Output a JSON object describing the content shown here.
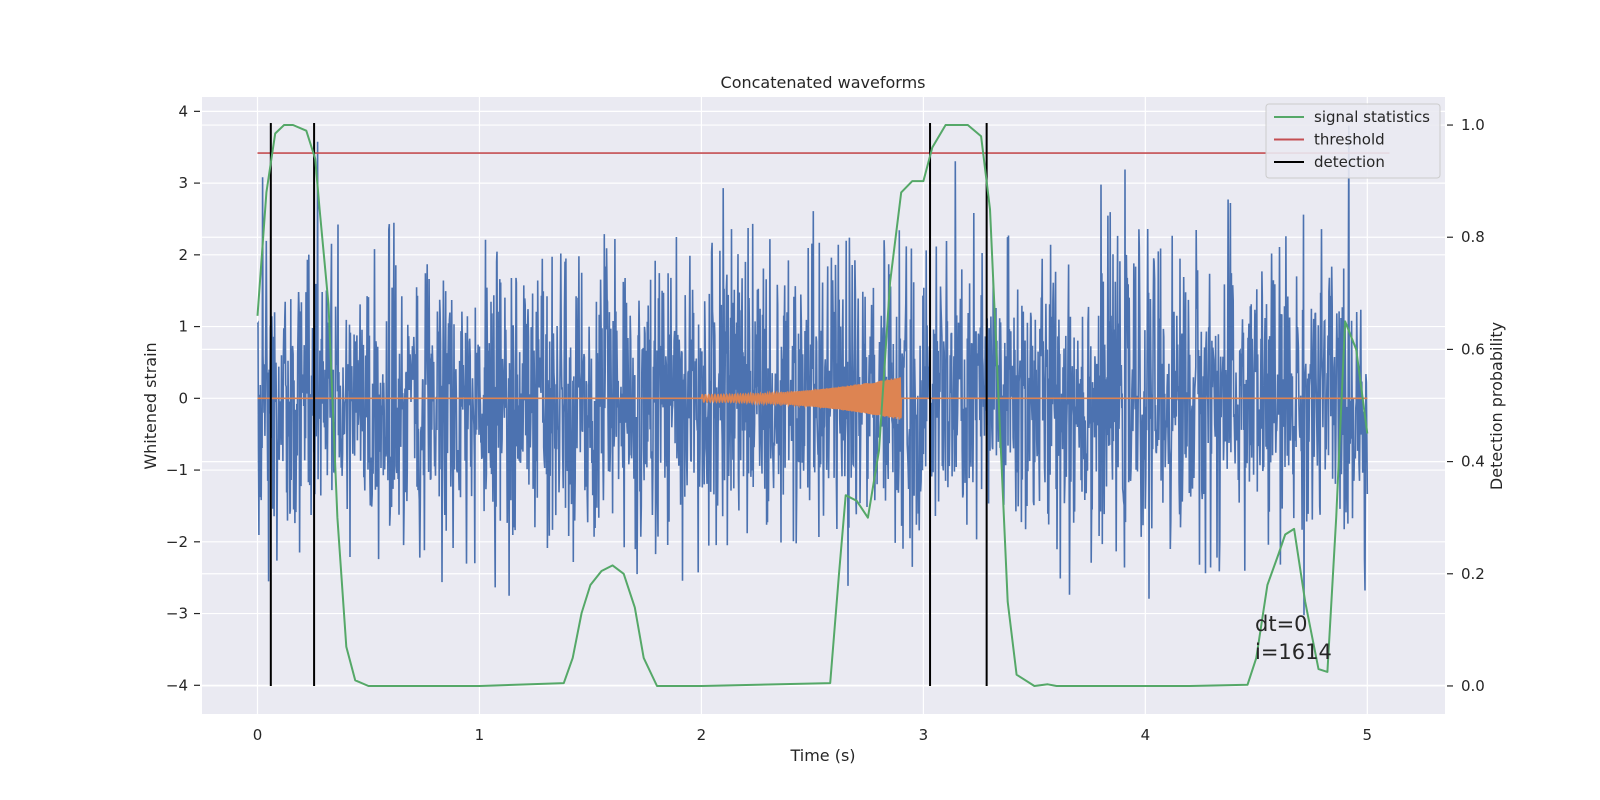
{
  "chart_data": {
    "type": "line",
    "title": "Concatenated waveforms",
    "xlabel": "Time (s)",
    "ylabel": "Whitened strain",
    "y2label": "Detection probability",
    "xlim": [
      -0.25,
      5.35
    ],
    "ylim": [
      -4.4,
      4.2
    ],
    "y2lim": [
      -0.05,
      1.05
    ],
    "x_ticks": [
      0,
      1,
      2,
      3,
      4,
      5
    ],
    "y_ticks": [
      -4,
      -3,
      -2,
      -1,
      0,
      1,
      2,
      3,
      4
    ],
    "y2_ticks": [
      0.0,
      0.2,
      0.4,
      0.6,
      0.8,
      1.0
    ],
    "grid": true,
    "legend_position": "top-right",
    "legend": [
      {
        "label": "signal statistics",
        "color": "#55a868"
      },
      {
        "label": "threshold",
        "color": "#c44e52"
      },
      {
        "label": "detection",
        "color": "#000000"
      }
    ],
    "colors": {
      "strain": "#4c72b0",
      "waveform": "#dd8452",
      "signal": "#55a868",
      "threshold": "#c44e52",
      "detection": "#000000",
      "axes_bg": "#eaeaf2",
      "grid": "#ffffff"
    },
    "strain_series": {
      "name": "whitened strain",
      "x_range": [
        0,
        5
      ],
      "amplitude_noise": 1.0
    },
    "waveform_series": {
      "name": "injected waveform",
      "x_start": 2.0,
      "x_end": 2.9,
      "peak_amplitude": 0.3
    },
    "threshold": {
      "y": 0.95,
      "x_range": [
        0,
        5.1
      ]
    },
    "detections": [
      0.06,
      0.255,
      3.03,
      3.285
    ],
    "signal_statistics": {
      "x": [
        0.0,
        0.04,
        0.08,
        0.12,
        0.16,
        0.22,
        0.26,
        0.28,
        0.32,
        0.36,
        0.4,
        0.44,
        0.5,
        0.6,
        1.0,
        1.38,
        1.42,
        1.46,
        1.5,
        1.55,
        1.6,
        1.65,
        1.7,
        1.74,
        1.8,
        2.0,
        2.58,
        2.62,
        2.65,
        2.7,
        2.75,
        2.8,
        2.85,
        2.9,
        2.95,
        3.0,
        3.04,
        3.1,
        3.2,
        3.26,
        3.3,
        3.34,
        3.38,
        3.42,
        3.5,
        3.56,
        3.6,
        4.2,
        4.46,
        4.5,
        4.55,
        4.6,
        4.63,
        4.67,
        4.72,
        4.78,
        4.82,
        4.86,
        4.9,
        4.95,
        5.0
      ],
      "y": [
        0.66,
        0.88,
        0.985,
        1.0,
        1.0,
        0.99,
        0.94,
        0.85,
        0.68,
        0.3,
        0.07,
        0.01,
        0.0,
        0.0,
        0.0,
        0.005,
        0.05,
        0.13,
        0.18,
        0.205,
        0.215,
        0.2,
        0.14,
        0.05,
        0.0,
        0.0,
        0.005,
        0.2,
        0.34,
        0.33,
        0.3,
        0.42,
        0.72,
        0.88,
        0.9,
        0.9,
        0.96,
        1.0,
        1.0,
        0.98,
        0.85,
        0.5,
        0.15,
        0.02,
        0.0,
        0.003,
        0.0,
        0.0,
        0.002,
        0.05,
        0.18,
        0.235,
        0.27,
        0.28,
        0.15,
        0.03,
        0.025,
        0.3,
        0.65,
        0.6,
        0.45
      ]
    },
    "annotations": [
      "dt=0",
      "i=1614"
    ]
  }
}
